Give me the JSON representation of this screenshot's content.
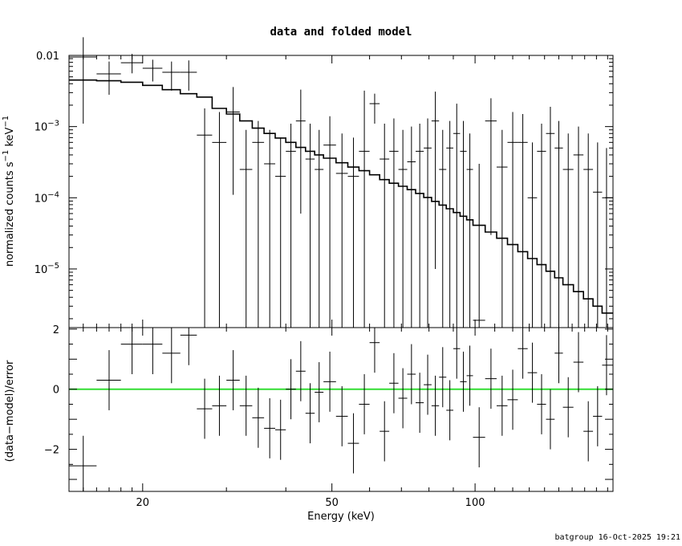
{
  "title": "data and folded model",
  "footer": "batgroup 16-Oct-2025 19:21",
  "chart_data": [
    {
      "panel": "top",
      "type": "scatter",
      "xlabel": "Energy (keV)",
      "ylabel": "normalized counts s^-1 keV^-1",
      "xscale": "log",
      "yscale": "log",
      "xlim": [
        14,
        195
      ],
      "ylim": [
        1.5e-06,
        0.01
      ],
      "ytick_labels": [
        {
          "value": 0.01,
          "text": "0.01"
        },
        {
          "value": 0.001,
          "base": "10",
          "exp": "−3"
        },
        {
          "value": 0.0001,
          "base": "10",
          "exp": "−4"
        },
        {
          "value": 1e-05,
          "base": "10",
          "exp": "−5"
        }
      ],
      "data_color": "#000000",
      "model_color": "#000000",
      "data": [
        {
          "x": 15.0,
          "xlo": 14.0,
          "xhi": 16.0,
          "y": 0.0095,
          "ylo": 0.0011,
          "yhi": 0.018
        },
        {
          "x": 17.0,
          "xlo": 16.0,
          "xhi": 18.0,
          "y": 0.0055,
          "ylo": 0.0028,
          "yhi": 0.0082
        },
        {
          "x": 19.0,
          "xlo": 18.0,
          "xhi": 20.0,
          "y": 0.0079,
          "ylo": 0.0056,
          "yhi": 0.0105
        },
        {
          "x": 21.0,
          "xlo": 20.0,
          "xhi": 22.0,
          "y": 0.0066,
          "ylo": 0.0043,
          "yhi": 0.0087
        },
        {
          "x": 23.0,
          "xlo": 22.0,
          "xhi": 24.0,
          "y": 0.0058,
          "ylo": 0.0032,
          "yhi": 0.0082
        },
        {
          "x": 25.0,
          "xlo": 24.0,
          "xhi": 26.0,
          "y": 0.0058,
          "ylo": 0.0032,
          "yhi": 0.0085
        },
        {
          "x": 27.0,
          "xlo": 26.0,
          "xhi": 28.0,
          "y": 0.00076,
          "ylo": 1.5e-06,
          "yhi": 0.0018
        },
        {
          "x": 29.0,
          "xlo": 28.0,
          "xhi": 30.0,
          "y": 0.0006,
          "ylo": 1.5e-06,
          "yhi": 0.0016
        },
        {
          "x": 31.0,
          "xlo": 30.0,
          "xhi": 32.0,
          "y": 0.0016,
          "ylo": 0.00011,
          "yhi": 0.0036
        },
        {
          "x": 33.0,
          "xlo": 32.0,
          "xhi": 34.0,
          "y": 0.00025,
          "ylo": 1.5e-06,
          "yhi": 0.0009
        },
        {
          "x": 35.0,
          "xlo": 34.0,
          "xhi": 36.0,
          "y": 0.0006,
          "ylo": 1.5e-06,
          "yhi": 0.0012
        },
        {
          "x": 37.0,
          "xlo": 36.0,
          "xhi": 38.0,
          "y": 0.0003,
          "ylo": 1.5e-06,
          "yhi": 0.0009
        },
        {
          "x": 39.0,
          "xlo": 38.0,
          "xhi": 40.0,
          "y": 0.0002,
          "ylo": 1.5e-06,
          "yhi": 0.0007
        },
        {
          "x": 41.0,
          "xlo": 40.0,
          "xhi": 42.0,
          "y": 0.00045,
          "ylo": 1.5e-06,
          "yhi": 0.0011
        },
        {
          "x": 43.0,
          "xlo": 42.0,
          "xhi": 44.0,
          "y": 0.0012,
          "ylo": 6e-05,
          "yhi": 0.0033
        },
        {
          "x": 45.0,
          "xlo": 44.0,
          "xhi": 46.0,
          "y": 0.00035,
          "ylo": 1.5e-06,
          "yhi": 0.0011
        },
        {
          "x": 47.0,
          "xlo": 46.0,
          "xhi": 48.0,
          "y": 0.00025,
          "ylo": 1.5e-06,
          "yhi": 0.0009
        },
        {
          "x": 49.5,
          "xlo": 48.0,
          "xhi": 51.0,
          "y": 0.00055,
          "ylo": 1.5e-06,
          "yhi": 0.0014
        },
        {
          "x": 52.5,
          "xlo": 51.0,
          "xhi": 54.0,
          "y": 0.00022,
          "ylo": 1.5e-06,
          "yhi": 0.0008
        },
        {
          "x": 55.5,
          "xlo": 54.0,
          "xhi": 57.0,
          "y": 0.0002,
          "ylo": 1.5e-06,
          "yhi": 0.0007
        },
        {
          "x": 58.5,
          "xlo": 57.0,
          "xhi": 60.0,
          "y": 0.00045,
          "ylo": 1.5e-06,
          "yhi": 0.0032
        },
        {
          "x": 61.5,
          "xlo": 60.0,
          "xhi": 63.0,
          "y": 0.0021,
          "ylo": 0.0011,
          "yhi": 0.0029
        },
        {
          "x": 64.5,
          "xlo": 63.0,
          "xhi": 66.0,
          "y": 0.00035,
          "ylo": 1.5e-06,
          "yhi": 0.0011
        },
        {
          "x": 67.5,
          "xlo": 66.0,
          "xhi": 69.0,
          "y": 0.00045,
          "ylo": 1.5e-06,
          "yhi": 0.0013
        },
        {
          "x": 70.5,
          "xlo": 69.0,
          "xhi": 72.0,
          "y": 0.00025,
          "ylo": 1.5e-06,
          "yhi": 0.0009
        },
        {
          "x": 73.5,
          "xlo": 72.0,
          "xhi": 75.0,
          "y": 0.00032,
          "ylo": 1.5e-06,
          "yhi": 0.001
        },
        {
          "x": 76.5,
          "xlo": 75.0,
          "xhi": 78.0,
          "y": 0.00045,
          "ylo": 1.5e-06,
          "yhi": 0.0011
        },
        {
          "x": 79.5,
          "xlo": 78.0,
          "xhi": 81.0,
          "y": 0.0005,
          "ylo": 1.5e-06,
          "yhi": 0.0013
        },
        {
          "x": 82.5,
          "xlo": 81.0,
          "xhi": 84.0,
          "y": 0.0012,
          "ylo": 1e-05,
          "yhi": 0.0031
        },
        {
          "x": 85.5,
          "xlo": 84.0,
          "xhi": 87.0,
          "y": 0.00025,
          "ylo": 1.5e-06,
          "yhi": 0.0009
        },
        {
          "x": 88.5,
          "xlo": 87.0,
          "xhi": 90.0,
          "y": 0.0005,
          "ylo": 1.5e-06,
          "yhi": 0.0012
        },
        {
          "x": 91.5,
          "xlo": 90.0,
          "xhi": 93.0,
          "y": 0.0008,
          "ylo": 1.5e-06,
          "yhi": 0.0021
        },
        {
          "x": 94.5,
          "xlo": 93.0,
          "xhi": 96.0,
          "y": 0.00045,
          "ylo": 1.5e-06,
          "yhi": 0.0012
        },
        {
          "x": 97.5,
          "xlo": 96.0,
          "xhi": 99.0,
          "y": 0.00025,
          "ylo": 1.5e-06,
          "yhi": 0.0008
        },
        {
          "x": 102.0,
          "xlo": 99.0,
          "xhi": 105.0,
          "y": 1.9e-06,
          "ylo": 1.5e-06,
          "yhi": 0.0003
        },
        {
          "x": 108.0,
          "xlo": 105.0,
          "xhi": 111.0,
          "y": 0.0012,
          "ylo": 3e-05,
          "yhi": 0.0025
        },
        {
          "x": 114.0,
          "xlo": 111.0,
          "xhi": 117.0,
          "y": 0.00027,
          "ylo": 1.5e-06,
          "yhi": 0.0009
        },
        {
          "x": 120.0,
          "xlo": 117.0,
          "xhi": 123.0,
          "y": 0.0006,
          "ylo": 1.5e-06,
          "yhi": 0.0016
        },
        {
          "x": 126.0,
          "xlo": 123.0,
          "xhi": 129.0,
          "y": 0.0006,
          "ylo": 1.5e-06,
          "yhi": 0.0015
        },
        {
          "x": 132.0,
          "xlo": 129.0,
          "xhi": 135.0,
          "y": 0.0001,
          "ylo": 1.5e-06,
          "yhi": 0.0006
        },
        {
          "x": 138.0,
          "xlo": 135.0,
          "xhi": 141.0,
          "y": 0.00045,
          "ylo": 1.5e-06,
          "yhi": 0.0011
        },
        {
          "x": 144.0,
          "xlo": 141.0,
          "xhi": 147.0,
          "y": 0.0008,
          "ylo": 1.5e-06,
          "yhi": 0.0019
        },
        {
          "x": 150.0,
          "xlo": 147.0,
          "xhi": 153.0,
          "y": 0.0005,
          "ylo": 1.5e-06,
          "yhi": 0.0012
        },
        {
          "x": 157.0,
          "xlo": 153.0,
          "xhi": 161.0,
          "y": 0.00025,
          "ylo": 1.5e-06,
          "yhi": 0.0008
        },
        {
          "x": 165.0,
          "xlo": 161.0,
          "xhi": 169.0,
          "y": 0.0004,
          "ylo": 1.5e-06,
          "yhi": 0.001
        },
        {
          "x": 173.0,
          "xlo": 169.0,
          "xhi": 177.0,
          "y": 0.00025,
          "ylo": 1.5e-06,
          "yhi": 0.0008
        },
        {
          "x": 181.0,
          "xlo": 177.0,
          "xhi": 185.0,
          "y": 0.00012,
          "ylo": 1.5e-06,
          "yhi": 0.0006
        },
        {
          "x": 189.0,
          "xlo": 185.0,
          "xhi": 195.0,
          "y": 0.0001,
          "ylo": 1.5e-06,
          "yhi": 0.0005
        }
      ],
      "model": {
        "edges": [
          14,
          16,
          18,
          20,
          22,
          24,
          26,
          28,
          30,
          32,
          34,
          36,
          38,
          40,
          42,
          44,
          46,
          48,
          51,
          54,
          57,
          60,
          63,
          66,
          69,
          72,
          75,
          78,
          81,
          84,
          87,
          90,
          93,
          96,
          99,
          105,
          111,
          117,
          123,
          129,
          135,
          141,
          147,
          153,
          161,
          169,
          177,
          185,
          195
        ],
        "values": [
          0.0045,
          0.0044,
          0.0042,
          0.0038,
          0.0033,
          0.0029,
          0.0026,
          0.0018,
          0.0015,
          0.0012,
          0.00095,
          0.0008,
          0.00069,
          0.0006,
          0.00051,
          0.00045,
          0.0004,
          0.00036,
          0.00031,
          0.00027,
          0.00024,
          0.00021,
          0.00018,
          0.00016,
          0.000145,
          0.00013,
          0.000115,
          0.000101,
          8.9e-05,
          7.9e-05,
          7e-05,
          6.2e-05,
          5.5e-05,
          4.9e-05,
          4.1e-05,
          3.3e-05,
          2.7e-05,
          2.2e-05,
          1.75e-05,
          1.4e-05,
          1.15e-05,
          9.3e-06,
          7.5e-06,
          6e-06,
          4.8e-06,
          3.8e-06,
          3e-06,
          2.4e-06
        ]
      }
    },
    {
      "panel": "bottom",
      "type": "scatter",
      "xlabel": "Energy (keV)",
      "ylabel": "(data−model)/error",
      "xscale": "log",
      "xlim": [
        14,
        195
      ],
      "ylim": [
        -3.4,
        2.05
      ],
      "yticks": [
        2,
        0,
        -2
      ],
      "ytick_labels": [
        "2",
        "0",
        "−2"
      ],
      "xticks": [
        20,
        50,
        100
      ],
      "xtick_labels": [
        "20",
        "50",
        "100"
      ],
      "zero_line_color": "#33dd33",
      "data": [
        {
          "x": 15.0,
          "xlo": 14.0,
          "xhi": 16.0,
          "y": -2.55,
          "ylo": -3.4,
          "yhi": -1.55
        },
        {
          "x": 17.0,
          "xlo": 16.0,
          "xhi": 18.0,
          "y": 0.3,
          "ylo": -0.7,
          "yhi": 1.3
        },
        {
          "x": 19.0,
          "xlo": 18.0,
          "xhi": 20.0,
          "y": 1.5,
          "ylo": 0.5,
          "yhi": 2.05
        },
        {
          "x": 21.0,
          "xlo": 20.0,
          "xhi": 22.0,
          "y": 1.5,
          "ylo": 0.5,
          "yhi": 2.05
        },
        {
          "x": 23.0,
          "xlo": 22.0,
          "xhi": 24.0,
          "y": 1.2,
          "ylo": 0.2,
          "yhi": 2.05
        },
        {
          "x": 25.0,
          "xlo": 24.0,
          "xhi": 26.0,
          "y": 1.8,
          "ylo": 0.8,
          "yhi": 2.05
        },
        {
          "x": 27.0,
          "xlo": 26.0,
          "xhi": 28.0,
          "y": -0.65,
          "ylo": -1.65,
          "yhi": 0.35
        },
        {
          "x": 29.0,
          "xlo": 28.0,
          "xhi": 30.0,
          "y": -0.55,
          "ylo": -1.55,
          "yhi": 0.45
        },
        {
          "x": 31.0,
          "xlo": 30.0,
          "xhi": 32.0,
          "y": 0.3,
          "ylo": -0.7,
          "yhi": 1.3
        },
        {
          "x": 33.0,
          "xlo": 32.0,
          "xhi": 34.0,
          "y": -0.55,
          "ylo": -1.55,
          "yhi": 0.45
        },
        {
          "x": 35.0,
          "xlo": 34.0,
          "xhi": 36.0,
          "y": -0.95,
          "ylo": -1.95,
          "yhi": 0.05
        },
        {
          "x": 37.0,
          "xlo": 36.0,
          "xhi": 38.0,
          "y": -1.3,
          "ylo": -2.3,
          "yhi": -0.3
        },
        {
          "x": 39.0,
          "xlo": 38.0,
          "xhi": 40.0,
          "y": -1.35,
          "ylo": -2.35,
          "yhi": -0.35
        },
        {
          "x": 41.0,
          "xlo": 40.0,
          "xhi": 42.0,
          "y": 0.0,
          "ylo": -1.0,
          "yhi": 1.0
        },
        {
          "x": 43.0,
          "xlo": 42.0,
          "xhi": 44.0,
          "y": 0.6,
          "ylo": -0.4,
          "yhi": 1.6
        },
        {
          "x": 45.0,
          "xlo": 44.0,
          "xhi": 46.0,
          "y": -0.8,
          "ylo": -1.8,
          "yhi": 0.2
        },
        {
          "x": 47.0,
          "xlo": 46.0,
          "xhi": 48.0,
          "y": -0.1,
          "ylo": -1.1,
          "yhi": 0.9
        },
        {
          "x": 49.5,
          "xlo": 48.0,
          "xhi": 51.0,
          "y": 0.25,
          "ylo": -0.75,
          "yhi": 1.25
        },
        {
          "x": 52.5,
          "xlo": 51.0,
          "xhi": 54.0,
          "y": -0.9,
          "ylo": -1.9,
          "yhi": 0.1
        },
        {
          "x": 55.5,
          "xlo": 54.0,
          "xhi": 57.0,
          "y": -1.8,
          "ylo": -2.8,
          "yhi": -0.8
        },
        {
          "x": 58.5,
          "xlo": 57.0,
          "xhi": 60.0,
          "y": -0.5,
          "ylo": -1.5,
          "yhi": 0.5
        },
        {
          "x": 61.5,
          "xlo": 60.0,
          "xhi": 63.0,
          "y": 1.55,
          "ylo": 0.55,
          "yhi": 2.05
        },
        {
          "x": 64.5,
          "xlo": 63.0,
          "xhi": 66.0,
          "y": -1.4,
          "ylo": -2.4,
          "yhi": -0.4
        },
        {
          "x": 67.5,
          "xlo": 66.0,
          "xhi": 69.0,
          "y": 0.2,
          "ylo": -0.8,
          "yhi": 1.2
        },
        {
          "x": 70.5,
          "xlo": 69.0,
          "xhi": 72.0,
          "y": -0.3,
          "ylo": -1.3,
          "yhi": 0.7
        },
        {
          "x": 73.5,
          "xlo": 72.0,
          "xhi": 75.0,
          "y": 0.5,
          "ylo": -0.5,
          "yhi": 1.5
        },
        {
          "x": 76.5,
          "xlo": 75.0,
          "xhi": 78.0,
          "y": -0.45,
          "ylo": -1.45,
          "yhi": 0.55
        },
        {
          "x": 79.5,
          "xlo": 78.0,
          "xhi": 81.0,
          "y": 0.15,
          "ylo": -0.85,
          "yhi": 1.15
        },
        {
          "x": 82.5,
          "xlo": 81.0,
          "xhi": 84.0,
          "y": -0.55,
          "ylo": -1.55,
          "yhi": 0.45
        },
        {
          "x": 85.5,
          "xlo": 84.0,
          "xhi": 87.0,
          "y": 0.4,
          "ylo": -0.6,
          "yhi": 1.4
        },
        {
          "x": 88.5,
          "xlo": 87.0,
          "xhi": 90.0,
          "y": -0.7,
          "ylo": -1.7,
          "yhi": 0.3
        },
        {
          "x": 91.5,
          "xlo": 90.0,
          "xhi": 93.0,
          "y": 1.35,
          "ylo": 0.35,
          "yhi": 2.05
        },
        {
          "x": 94.5,
          "xlo": 93.0,
          "xhi": 96.0,
          "y": 0.25,
          "ylo": -0.75,
          "yhi": 1.25
        },
        {
          "x": 97.5,
          "xlo": 96.0,
          "xhi": 99.0,
          "y": 0.45,
          "ylo": -0.55,
          "yhi": 1.45
        },
        {
          "x": 102.0,
          "xlo": 99.0,
          "xhi": 105.0,
          "y": -1.6,
          "ylo": -2.6,
          "yhi": -0.6
        },
        {
          "x": 108.0,
          "xlo": 105.0,
          "xhi": 111.0,
          "y": 0.35,
          "ylo": -0.65,
          "yhi": 1.35
        },
        {
          "x": 114.0,
          "xlo": 111.0,
          "xhi": 117.0,
          "y": -0.55,
          "ylo": -1.55,
          "yhi": 0.45
        },
        {
          "x": 120.0,
          "xlo": 117.0,
          "xhi": 123.0,
          "y": -0.35,
          "ylo": -1.35,
          "yhi": 0.65
        },
        {
          "x": 126.0,
          "xlo": 123.0,
          "xhi": 129.0,
          "y": 1.35,
          "ylo": 0.35,
          "yhi": 2.05
        },
        {
          "x": 132.0,
          "xlo": 129.0,
          "xhi": 135.0,
          "y": 0.55,
          "ylo": -0.45,
          "yhi": 1.55
        },
        {
          "x": 138.0,
          "xlo": 135.0,
          "xhi": 141.0,
          "y": -0.5,
          "ylo": -1.5,
          "yhi": 0.5
        },
        {
          "x": 144.0,
          "xlo": 141.0,
          "xhi": 147.0,
          "y": -1.0,
          "ylo": -2.0,
          "yhi": 0.0
        },
        {
          "x": 150.0,
          "xlo": 147.0,
          "xhi": 153.0,
          "y": 1.2,
          "ylo": 0.2,
          "yhi": 2.05
        },
        {
          "x": 157.0,
          "xlo": 153.0,
          "xhi": 161.0,
          "y": -0.6,
          "ylo": -1.6,
          "yhi": 0.4
        },
        {
          "x": 165.0,
          "xlo": 161.0,
          "xhi": 169.0,
          "y": 0.9,
          "ylo": -0.1,
          "yhi": 1.9
        },
        {
          "x": 173.0,
          "xlo": 169.0,
          "xhi": 177.0,
          "y": -1.4,
          "ylo": -2.4,
          "yhi": -0.4
        },
        {
          "x": 181.0,
          "xlo": 177.0,
          "xhi": 185.0,
          "y": -0.9,
          "ylo": -1.9,
          "yhi": 0.1
        },
        {
          "x": 189.0,
          "xlo": 185.0,
          "xhi": 195.0,
          "y": 0.8,
          "ylo": -0.2,
          "yhi": 1.8
        }
      ]
    }
  ]
}
